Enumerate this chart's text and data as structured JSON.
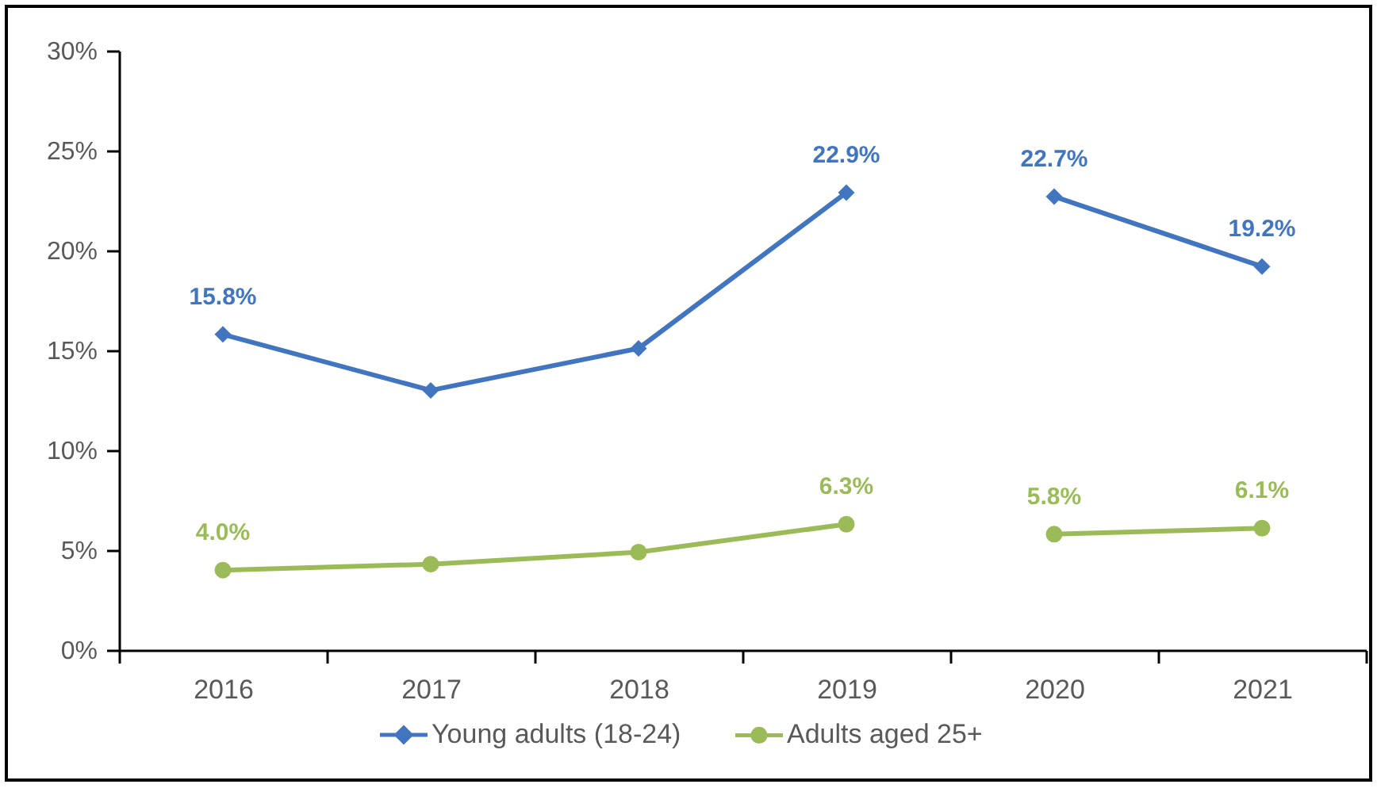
{
  "chart_data": {
    "type": "line",
    "categories": [
      "2016",
      "2017",
      "2018",
      "2019",
      "2020",
      "2021"
    ],
    "series": [
      {
        "name": "Young adults (18-24)",
        "color": "#4275bf",
        "marker": "diamond",
        "values": [
          15.8,
          13.0,
          15.1,
          22.9,
          null,
          null
        ],
        "value_labels": [
          "15.8%",
          null,
          null,
          "22.9%",
          null,
          null
        ]
      },
      {
        "color": "#4275bf",
        "marker": "diamond",
        "values": [
          null,
          null,
          null,
          null,
          22.7,
          19.2
        ],
        "value_labels": [
          null,
          null,
          null,
          null,
          "22.7%",
          "19.2%"
        ]
      },
      {
        "name": "Adults aged 25+",
        "color": "#9bbb59",
        "marker": "circle",
        "values": [
          4.0,
          4.3,
          4.9,
          6.3,
          null,
          null
        ],
        "value_labels": [
          "4.0%",
          null,
          null,
          "6.3%",
          null,
          null
        ]
      },
      {
        "color": "#9bbb59",
        "marker": "circle",
        "values": [
          null,
          null,
          null,
          null,
          5.8,
          6.1
        ],
        "value_labels": [
          null,
          null,
          null,
          null,
          "5.8%",
          "6.1%"
        ]
      }
    ],
    "ylim": [
      0,
      30
    ],
    "yticks": [
      {
        "value": 0,
        "label": "0%"
      },
      {
        "value": 5,
        "label": "5%"
      },
      {
        "value": 10,
        "label": "10%"
      },
      {
        "value": 15,
        "label": "15%"
      },
      {
        "value": 20,
        "label": "20%"
      },
      {
        "value": 25,
        "label": "25%"
      },
      {
        "value": 30,
        "label": "30%"
      }
    ],
    "legend": "bottom"
  }
}
